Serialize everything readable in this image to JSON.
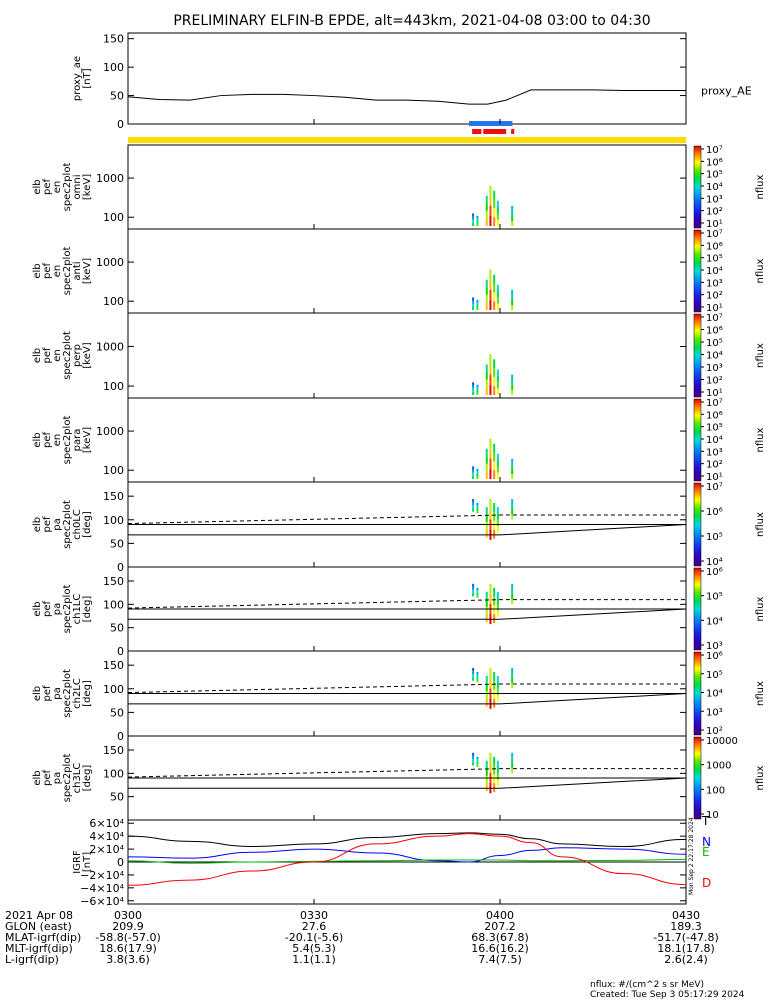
{
  "title": "PRELIMINARY ELFIN-B EPDE, alt=443km, 2021-04-08 03:00 to 04:30",
  "chart_data": [
    {
      "type": "line",
      "panel": "proxy_ae",
      "ylabel_lines": [
        "proxy_ae",
        "[nT]"
      ],
      "legend": "proxy_AE",
      "ylim": [
        0,
        160
      ],
      "yticks": [
        "0",
        "50",
        "100",
        "150"
      ],
      "x_minutes": [
        0,
        5,
        10,
        15,
        20,
        25,
        30,
        35,
        40,
        45,
        50,
        55,
        58,
        61,
        65,
        70,
        75,
        80,
        85,
        90
      ],
      "values": [
        48,
        43,
        42,
        50,
        52,
        52,
        50,
        47,
        42,
        42,
        40,
        35,
        35,
        42,
        60,
        60,
        60,
        59,
        59,
        59
      ]
    },
    {
      "type": "heatmap",
      "panel": "spec2plot_omni",
      "ylabel_lines": [
        "elb",
        "pef",
        "en",
        "spec2plot",
        "omni",
        "[keV]"
      ],
      "yscale": "log",
      "yticks": [
        "100",
        "1000"
      ],
      "colorbar": {
        "ticks": [
          "10¹",
          "10²",
          "10³",
          "10⁴",
          "10⁵",
          "10⁶",
          "10⁷"
        ],
        "label": "nflux"
      }
    },
    {
      "type": "heatmap",
      "panel": "spec2plot_anti",
      "ylabel_lines": [
        "elb",
        "pef",
        "en",
        "spec2plot",
        "anti",
        "[keV]"
      ],
      "yscale": "log",
      "yticks": [
        "100",
        "1000"
      ],
      "colorbar": {
        "ticks": [
          "10¹",
          "10²",
          "10³",
          "10⁴",
          "10⁵",
          "10⁶",
          "10⁷"
        ],
        "label": "nflux"
      }
    },
    {
      "type": "heatmap",
      "panel": "spec2plot_perp",
      "ylabel_lines": [
        "elb",
        "pef",
        "en",
        "spec2plot",
        "perp",
        "[keV]"
      ],
      "yscale": "log",
      "yticks": [
        "100",
        "1000"
      ],
      "colorbar": {
        "ticks": [
          "10¹",
          "10²",
          "10³",
          "10⁴",
          "10⁵",
          "10⁶",
          "10⁷"
        ],
        "label": "nflux"
      }
    },
    {
      "type": "heatmap",
      "panel": "spec2plot_para",
      "ylabel_lines": [
        "elb",
        "pef",
        "en",
        "spec2plot",
        "para",
        "[keV]"
      ],
      "yscale": "log",
      "yticks": [
        "100",
        "1000"
      ],
      "colorbar": {
        "ticks": [
          "10¹",
          "10²",
          "10³",
          "10⁴",
          "10⁵",
          "10⁶",
          "10⁷"
        ],
        "label": "nflux"
      }
    },
    {
      "type": "heatmap",
      "panel": "spec2plot_ch0LC",
      "ylabel_lines": [
        "elb",
        "pef",
        "pa",
        "spec2plot",
        "ch0LC",
        "[deg]"
      ],
      "ylim": [
        0,
        180
      ],
      "yticks": [
        "0",
        "50",
        "100",
        "150"
      ],
      "colorbar": {
        "ticks": [
          "10⁴",
          "10⁵",
          "10⁶",
          "10⁷"
        ],
        "label": "nflux"
      }
    },
    {
      "type": "heatmap",
      "panel": "spec2plot_ch1LC",
      "ylabel_lines": [
        "elb",
        "pef",
        "pa",
        "spec2plot",
        "ch1LC",
        "[deg]"
      ],
      "ylim": [
        0,
        180
      ],
      "yticks": [
        "0",
        "50",
        "100",
        "150"
      ],
      "colorbar": {
        "ticks": [
          "10³",
          "10⁴",
          "10⁵",
          "10⁶"
        ],
        "label": "nflux"
      }
    },
    {
      "type": "heatmap",
      "panel": "spec2plot_ch2LC",
      "ylabel_lines": [
        "elb",
        "pef",
        "pa",
        "spec2plot",
        "ch2LC",
        "[deg]"
      ],
      "ylim": [
        0,
        180
      ],
      "yticks": [
        "0",
        "50",
        "100",
        "150"
      ],
      "colorbar": {
        "ticks": [
          "10²",
          "10³",
          "10⁴",
          "10⁵",
          "10⁶"
        ],
        "label": "nflux"
      }
    },
    {
      "type": "heatmap",
      "panel": "spec2plot_ch3LC",
      "ylabel_lines": [
        "elb",
        "pef",
        "pa",
        "spec2plot",
        "ch3LC",
        "[deg]"
      ],
      "ylim": [
        0,
        180
      ],
      "yticks": [
        "50",
        "100",
        "150"
      ],
      "colorbar": {
        "ticks": [
          "10",
          "100",
          "1000",
          "10000"
        ],
        "label": "nflux"
      }
    },
    {
      "type": "line",
      "panel": "IGRF",
      "ylabel_lines": [
        "IGRF",
        "[nT]"
      ],
      "ylim": [
        -65000,
        65000
      ],
      "yticks": [
        "−6×10⁴",
        "−4×10⁴",
        "−2×10⁴",
        "0",
        "2×10⁴",
        "4×10⁴",
        "6×10⁴"
      ],
      "x_minutes": [
        0,
        10,
        20,
        30,
        40,
        50,
        55,
        60,
        65,
        70,
        80,
        90
      ],
      "series": [
        {
          "name": "T",
          "color": "#000000",
          "values": [
            40000,
            32000,
            24000,
            28000,
            38000,
            44000,
            45000,
            43000,
            36000,
            28000,
            24000,
            35000
          ]
        },
        {
          "name": "N",
          "color": "#0000ff",
          "values": [
            8000,
            6000,
            15000,
            20000,
            14000,
            2000,
            0,
            10000,
            18000,
            22000,
            20000,
            12000
          ]
        },
        {
          "name": "E",
          "color": "#00bb00",
          "values": [
            2000,
            -2000,
            0,
            1000,
            2000,
            3000,
            3000,
            3000,
            2000,
            2000,
            2500,
            4000
          ]
        },
        {
          "name": "D",
          "color": "#ff0000",
          "values": [
            -36000,
            -28000,
            -14000,
            0,
            28000,
            40000,
            44000,
            40000,
            30000,
            8000,
            -18000,
            -35000
          ]
        }
      ]
    }
  ],
  "xaxis": {
    "rows": [
      {
        "label": "2021 Apr 08",
        "values": [
          "0300",
          "0330",
          "0400",
          "0430"
        ]
      },
      {
        "label": "GLON (east)",
        "values": [
          "209.9",
          "27.6",
          "207.2",
          "189.3"
        ]
      },
      {
        "label": "MLAT-igrf(dip)",
        "values": [
          "-58.8(-57.0)",
          "-20.1(-5.6)",
          "68.3(67.8)",
          "-51.7(-47.8)"
        ]
      },
      {
        "label": "MLT-igrf(dip)",
        "values": [
          "18.6(17.9)",
          "5.4(5.3)",
          "16.6(16.2)",
          "18.1(17.8)"
        ]
      },
      {
        "label": "L-igrf(dip)",
        "values": [
          "3.8(3.6)",
          "1.1(1.1)",
          "7.4(7.5)",
          "2.6(2.4)"
        ]
      }
    ]
  },
  "footer": {
    "units": "nflux: #/(cm^2 s sr MeV)",
    "created": "Created: Tue Sep  3 05:17:29 2024"
  },
  "side_stamp": "Mon Sep  2 22:17:28 2024"
}
